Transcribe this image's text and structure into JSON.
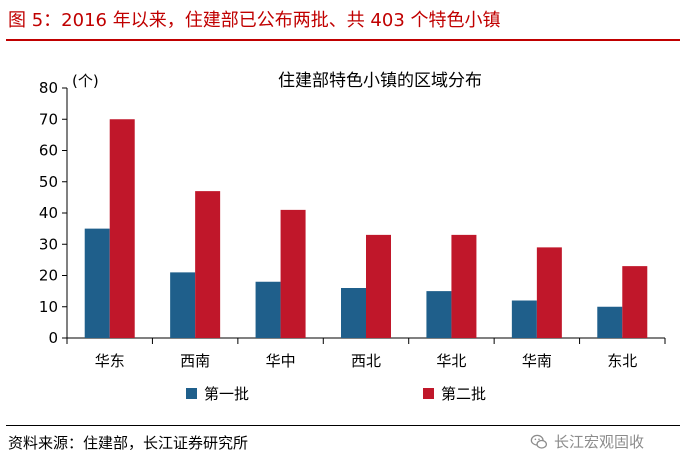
{
  "figure": {
    "caption": "图 5：2016 年以来，住建部已公布两批、共 403 个特色小镇",
    "source": "资料来源：住建部，长江证券研究所",
    "watermark": "长江宏观固收",
    "watermark_icon": "wechat-icon"
  },
  "colors": {
    "caption": "#c00000",
    "series_1": "#1f5f8b",
    "series_2": "#c0172a"
  },
  "chart_data": {
    "type": "bar",
    "title": "住建部特色小镇的区域分布",
    "ylabel": "(个)",
    "xlabel": "",
    "categories": [
      "华东",
      "西南",
      "华中",
      "西北",
      "华北",
      "华南",
      "东北"
    ],
    "series": [
      {
        "name": "第一批",
        "values": [
          35,
          21,
          18,
          16,
          15,
          12,
          10
        ]
      },
      {
        "name": "第二批",
        "values": [
          70,
          47,
          41,
          33,
          33,
          29,
          23
        ]
      }
    ],
    "ylim": [
      0,
      80
    ],
    "yticks": [
      0,
      10,
      20,
      30,
      40,
      50,
      60,
      70,
      80
    ],
    "grid": false,
    "legend": "bottom"
  }
}
